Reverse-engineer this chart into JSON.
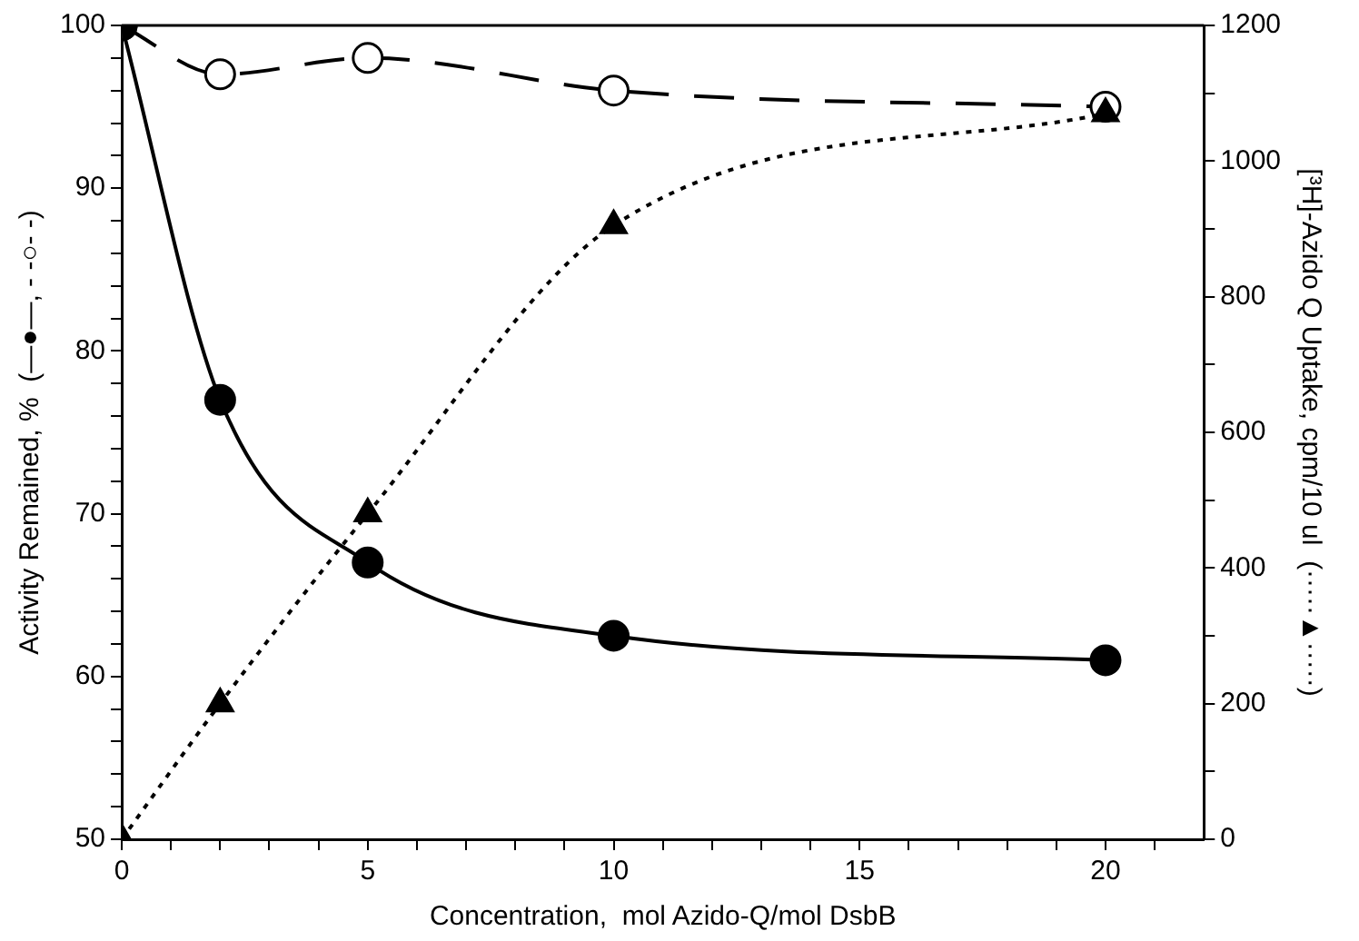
{
  "chart_data": {
    "type": "line",
    "xlabel": "Concentration,  mol Azido-Q/mol DsbB",
    "ylabel": "Activity Remained, %  (—●—, - -○- -)",
    "y2label": "[³H]-Azido Q Uptake, cpm/10 ul  (·····▲·····)",
    "x": [
      0,
      2,
      5,
      10,
      20
    ],
    "series": [
      {
        "color": "#000000",
        "marker": "circle",
        "line_style": "solid",
        "values": [
          100,
          77,
          67,
          62.5,
          61
        ]
      },
      {
        "color": "#000000",
        "marker": "circle",
        "line_style": "dashed",
        "values": [
          100,
          97,
          98,
          96,
          95
        ]
      },
      {
        "color": "#000000",
        "marker": "triangle",
        "line_style": "dotted",
        "axis": "y2",
        "values": [
          0,
          200,
          480,
          905,
          1070
        ]
      }
    ],
    "xlim": [
      0,
      22
    ],
    "xticks": [
      0,
      {
        "value": 1,
        "label": null
      },
      {
        "value": 2,
        "label": null
      },
      {
        "value": 3,
        "label": null
      },
      {
        "value": 4,
        "label": null
      },
      5,
      {
        "value": 6,
        "label": null
      },
      {
        "value": 7,
        "label": null
      },
      {
        "value": 8,
        "label": null
      },
      {
        "value": 9,
        "label": null
      },
      10,
      {
        "value": 11,
        "label": null
      },
      {
        "value": 12,
        "label": null
      },
      {
        "value": 13,
        "label": null
      },
      {
        "value": 14,
        "label": null
      },
      15,
      {
        "value": 16,
        "label": null
      },
      {
        "value": 17,
        "label": null
      },
      {
        "value": 18,
        "label": null
      },
      {
        "value": 19,
        "label": null
      },
      20,
      {
        "value": 21,
        "label": null
      }
    ],
    "ylim": [
      50,
      100
    ],
    "yticks": [
      50,
      {
        "value": 52,
        "label": null
      },
      {
        "value": 54,
        "label": null
      },
      {
        "value": 56,
        "label": null
      },
      {
        "value": 58,
        "label": null
      },
      60,
      {
        "value": 62,
        "label": null
      },
      {
        "value": 64,
        "label": null
      },
      {
        "value": 66,
        "label": null
      },
      {
        "value": 68,
        "label": null
      },
      70,
      {
        "value": 72,
        "label": null
      },
      {
        "value": 74,
        "label": null
      },
      {
        "value": 76,
        "label": null
      },
      {
        "value": 78,
        "label": null
      },
      80,
      {
        "value": 82,
        "label": null
      },
      {
        "value": 84,
        "label": null
      },
      {
        "value": 86,
        "label": null
      },
      {
        "value": 88,
        "label": null
      },
      90,
      {
        "value": 92,
        "label": null
      },
      {
        "value": 94,
        "label": null
      },
      {
        "value": 96,
        "label": null
      },
      {
        "value": 98,
        "label": null
      },
      100
    ],
    "y2lim": [
      0,
      1200
    ],
    "y2ticks": [
      0,
      {
        "value": 100,
        "label": null
      },
      200,
      {
        "value": 300,
        "label": null
      },
      400,
      {
        "value": 500,
        "label": null
      },
      600,
      {
        "value": 700,
        "label": null
      },
      800,
      {
        "value": 900,
        "label": null
      },
      1000,
      {
        "value": 1100,
        "label": null
      },
      1200
    ],
    "grid": false,
    "legend": false
  }
}
